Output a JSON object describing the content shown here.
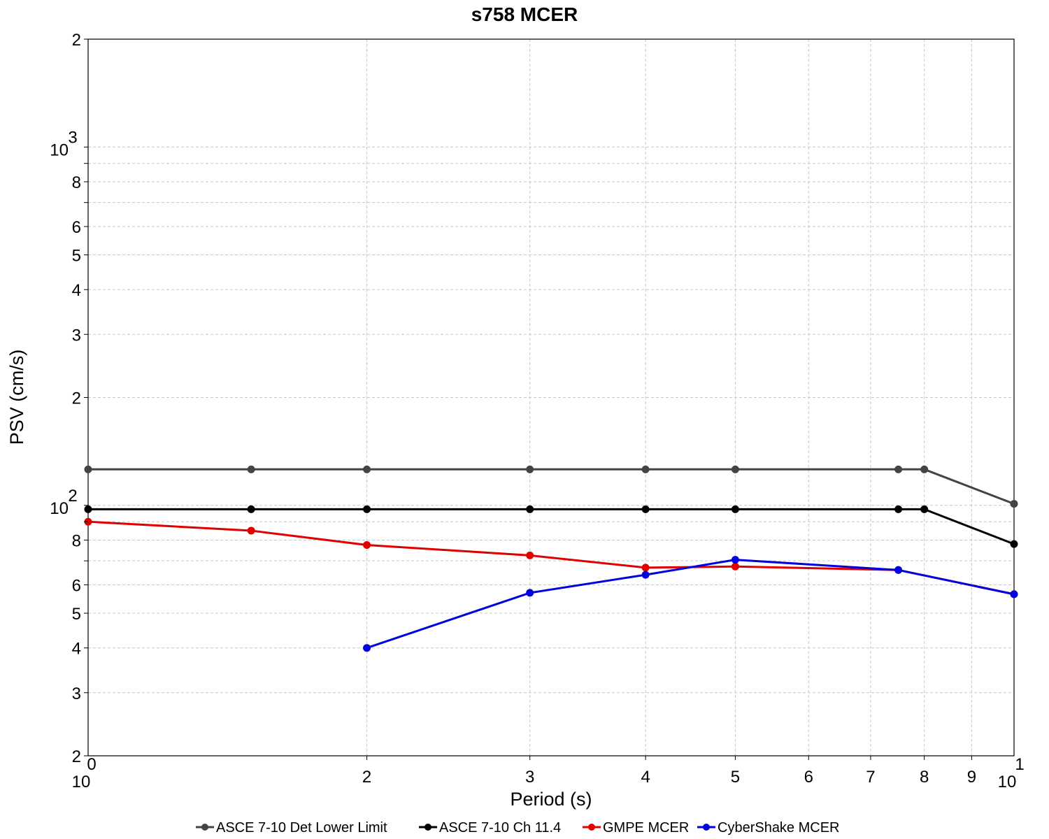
{
  "chart_data": {
    "type": "line",
    "title": "s758 MCER",
    "xlabel": "Period (s)",
    "ylabel": "PSV (cm/s)",
    "xscale": "log",
    "yscale": "log",
    "xlim": [
      1,
      10
    ],
    "ylim": [
      20,
      2000
    ],
    "grid": true,
    "legend_position": "bottom",
    "x_major_tick_labels": [
      {
        "value": 1,
        "base": "10",
        "exp": "0"
      },
      {
        "value": 10,
        "base": "10",
        "exp": "1"
      }
    ],
    "x_minor_tick_labels": [
      {
        "value": 2,
        "label": "2"
      },
      {
        "value": 3,
        "label": "3"
      },
      {
        "value": 4,
        "label": "4"
      },
      {
        "value": 5,
        "label": "5"
      },
      {
        "value": 6,
        "label": "6"
      },
      {
        "value": 7,
        "label": "7"
      },
      {
        "value": 8,
        "label": "8"
      },
      {
        "value": 9,
        "label": "9"
      }
    ],
    "y_major_tick_labels": [
      {
        "value": 100,
        "base": "10",
        "exp": "2"
      },
      {
        "value": 1000,
        "base": "10",
        "exp": "3"
      }
    ],
    "y_minor_tick_labels": [
      {
        "value": 20,
        "label": "2"
      },
      {
        "value": 30,
        "label": "3"
      },
      {
        "value": 40,
        "label": "4"
      },
      {
        "value": 50,
        "label": "5"
      },
      {
        "value": 60,
        "label": "6"
      },
      {
        "value": 80,
        "label": "8"
      },
      {
        "value": 200,
        "label": "2"
      },
      {
        "value": 300,
        "label": "3"
      },
      {
        "value": 400,
        "label": "4"
      },
      {
        "value": 500,
        "label": "5"
      },
      {
        "value": 600,
        "label": "6"
      },
      {
        "value": 800,
        "label": "8"
      },
      {
        "value": 2000,
        "label": "2"
      }
    ],
    "series": [
      {
        "name": "ASCE 7-10 Det Lower Limit",
        "color": "#444444",
        "x": [
          1,
          1.5,
          2,
          3,
          4,
          5,
          7.5,
          8,
          10
        ],
        "y": [
          126,
          126,
          126,
          126,
          126,
          126,
          126,
          126,
          101
        ]
      },
      {
        "name": "ASCE 7-10 Ch 11.4",
        "color": "#000000",
        "x": [
          1,
          1.5,
          2,
          3,
          4,
          5,
          7.5,
          8,
          10
        ],
        "y": [
          97.5,
          97.5,
          97.5,
          97.5,
          97.5,
          97.5,
          97.5,
          97.5,
          78
        ]
      },
      {
        "name": "GMPE MCER",
        "color": "#e00000",
        "x": [
          1,
          1.5,
          2,
          3,
          4,
          5,
          7.5,
          10
        ],
        "y": [
          90,
          85,
          77.5,
          72.5,
          67,
          67.5,
          66,
          56.5
        ]
      },
      {
        "name": "CyberShake MCER",
        "color": "#0000e0",
        "x": [
          2,
          3,
          4,
          5,
          7.5,
          10
        ],
        "y": [
          40,
          57,
          64,
          70.5,
          66,
          56.5
        ]
      }
    ]
  }
}
